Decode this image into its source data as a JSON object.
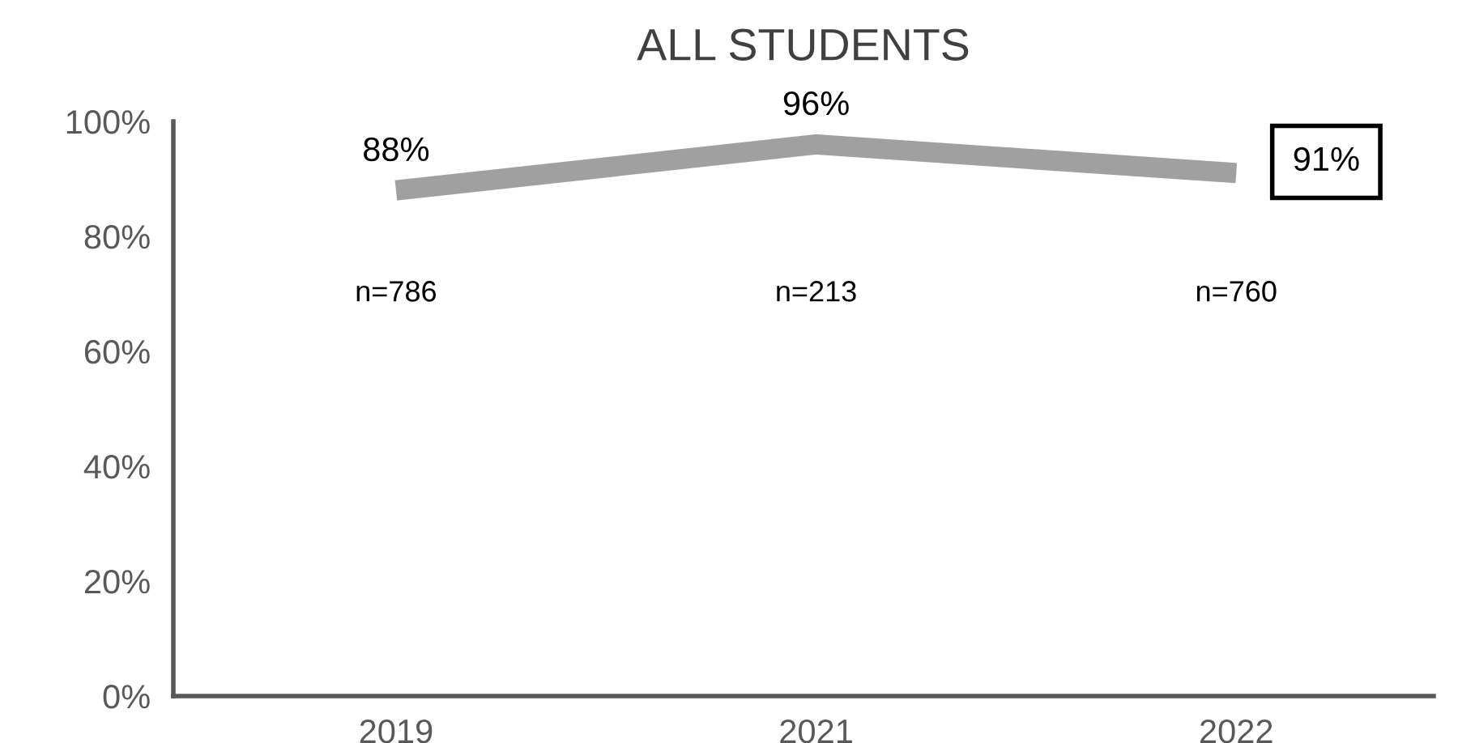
{
  "chart_data": {
    "type": "line",
    "title": "ALL STUDENTS",
    "categories": [
      "2019",
      "2021",
      "2022"
    ],
    "series": [
      {
        "color": "#a0a0a0",
        "values": [
          88,
          96,
          91
        ]
      }
    ],
    "ylim": [
      0,
      100
    ],
    "yticks": [
      {
        "value": 0,
        "label": "0%"
      },
      {
        "value": 20,
        "label": "20%"
      },
      {
        "value": 40,
        "label": "40%"
      },
      {
        "value": 60,
        "label": "60%"
      },
      {
        "value": 80,
        "label": "80%"
      },
      {
        "value": 100,
        "label": "100%"
      }
    ],
    "value_labels": [
      "88%",
      "96%",
      "91%"
    ],
    "annotations": [
      "n=786",
      "n=213",
      "n=760"
    ],
    "grid": false,
    "legend": false,
    "marker": "none",
    "line_style": "solid"
  }
}
